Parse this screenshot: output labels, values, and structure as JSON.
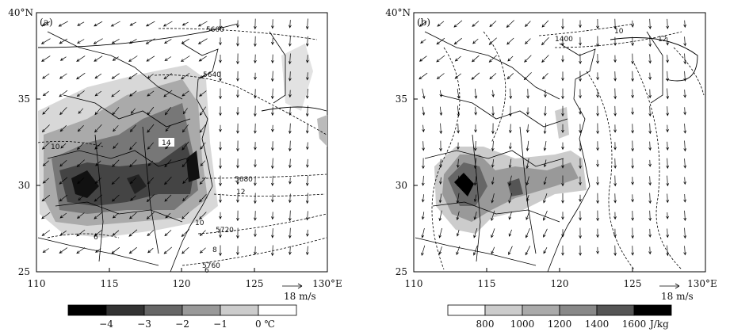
{
  "panels": [
    {
      "id": "a",
      "label": "(a)",
      "x_ticks": [
        "110",
        "115",
        "120",
        "125",
        "130°E"
      ],
      "y_ticks": [
        "25",
        "30",
        "35",
        "40°N"
      ],
      "vector_ref": "18 m/s",
      "contour_labels": [
        "5600",
        "5640",
        "14",
        "10",
        "5680",
        "12",
        "10",
        "5720",
        "8",
        "6",
        "5760",
        "6"
      ],
      "colorbar": {
        "labels": [
          "−4",
          "−3",
          "−2",
          "−1",
          "0 ℃"
        ],
        "colors": [
          "#000000",
          "#333333",
          "#666666",
          "#999999",
          "#cccccc",
          "#ffffff"
        ]
      }
    },
    {
      "id": "b",
      "label": "(b)",
      "x_ticks": [
        "110",
        "115",
        "120",
        "125",
        "130°E"
      ],
      "y_ticks": [
        "25",
        "30",
        "35",
        "40°N"
      ],
      "vector_ref": "18 m/s",
      "contour_labels": [
        "1400",
        "10",
        "12"
      ],
      "colorbar": {
        "labels": [
          "800",
          "1000",
          "1200",
          "1400",
          "1600",
          "J/kg"
        ],
        "colors": [
          "#ffffff",
          "#cccccc",
          "#aaaaaa",
          "#888888",
          "#666666",
          "#333333",
          "#000000"
        ]
      }
    }
  ]
}
